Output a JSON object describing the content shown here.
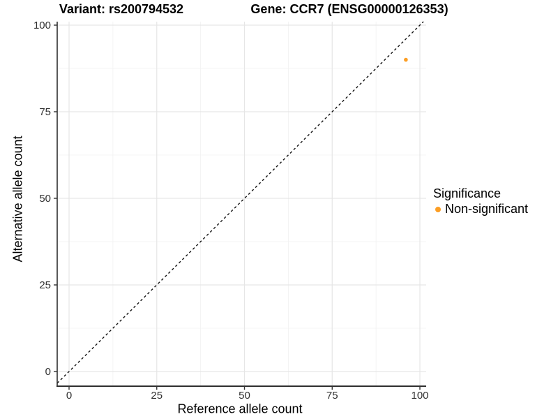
{
  "figure": {
    "titles": {
      "left": "Variant: rs200794532",
      "right": "Gene: CCR7 (ENSG00000126353)"
    },
    "axes": {
      "x_label": "Reference allele count",
      "y_label": "Alternative allele count"
    }
  },
  "legend": {
    "title": "Significance",
    "position": "right",
    "entries": [
      {
        "label": "Non-significant",
        "color": "#FC9E24"
      }
    ]
  },
  "colors": {
    "point": "#FC9E24",
    "grid_major": "#E6E6E6",
    "grid_minor": "#F1F1F1",
    "axis_line": "#2F2F2F",
    "tick_mark": "#333333",
    "tick_label": "#303030",
    "reference_line": "#111111",
    "background": "#FFFFFF"
  },
  "chart_data": {
    "type": "scatter",
    "title": "Variant: rs200794532  /  Gene: CCR7 (ENSG00000126353)",
    "xlabel": "Reference allele count",
    "ylabel": "Alternative allele count",
    "xlim": [
      0,
      100
    ],
    "ylim": [
      0,
      100
    ],
    "xticks": [
      0,
      25,
      50,
      75,
      100
    ],
    "yticks": [
      0,
      25,
      50,
      75,
      100
    ],
    "grid": {
      "major": true,
      "minor": true
    },
    "legend_position": "right",
    "series": [
      {
        "name": "Non-significant",
        "color": "#FC9E24",
        "points": [
          {
            "x": 96,
            "y": 90
          }
        ]
      }
    ],
    "reference_line": {
      "type": "abline",
      "slope": 1,
      "intercept": 0,
      "style": "dashed",
      "color": "#111111"
    }
  }
}
